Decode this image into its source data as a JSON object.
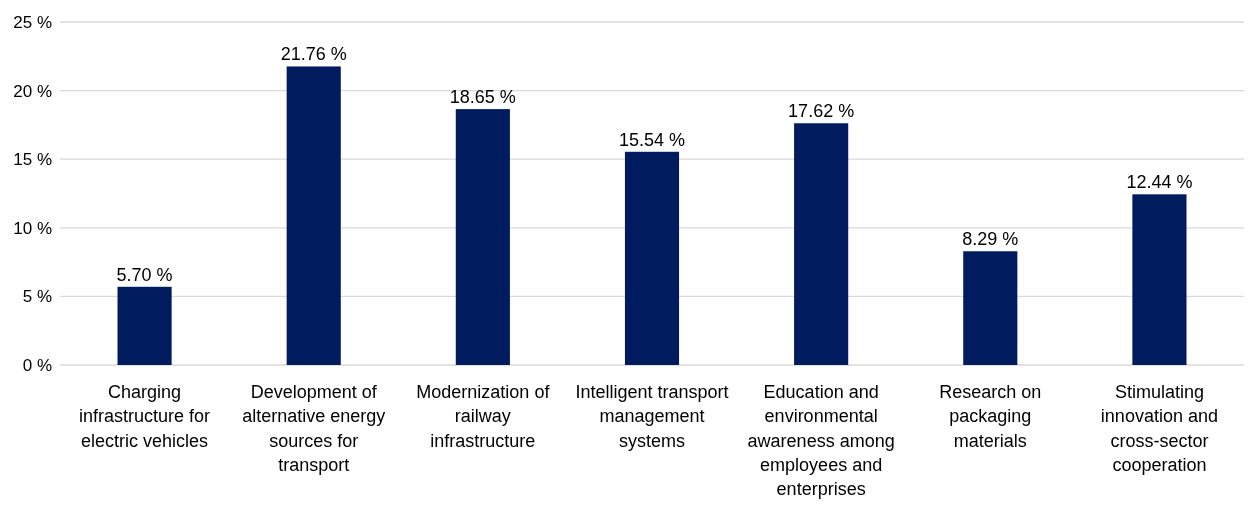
{
  "chart_data": {
    "type": "bar",
    "categories": [
      "Charging infrastructure for electric vehicles",
      "Development of alternative energy sources for transport",
      "Modernization of railway infrastructure",
      "Intelligent transport management systems",
      "Education and environmental awareness among employees and enterprises",
      "Research on packaging materials",
      "Stimulating innovation and cross-sector cooperation"
    ],
    "values": [
      5.7,
      21.76,
      18.65,
      15.54,
      17.62,
      8.29,
      12.44
    ],
    "value_labels": [
      "5.70 %",
      "21.76 %",
      "18.65 %",
      "15.54 %",
      "17.62 %",
      "8.29 %",
      "12.44 %"
    ],
    "color": "#001b5e",
    "ylim": [
      0,
      25
    ],
    "yticks": [
      {
        "value": 0,
        "label": "0 %"
      },
      {
        "value": 5,
        "label": "5 %"
      },
      {
        "value": 10,
        "label": "10 %"
      },
      {
        "value": 15,
        "label": "15 %"
      },
      {
        "value": 20,
        "label": "20 %"
      },
      {
        "value": 25,
        "label": "25 %"
      }
    ],
    "grid": "y"
  }
}
